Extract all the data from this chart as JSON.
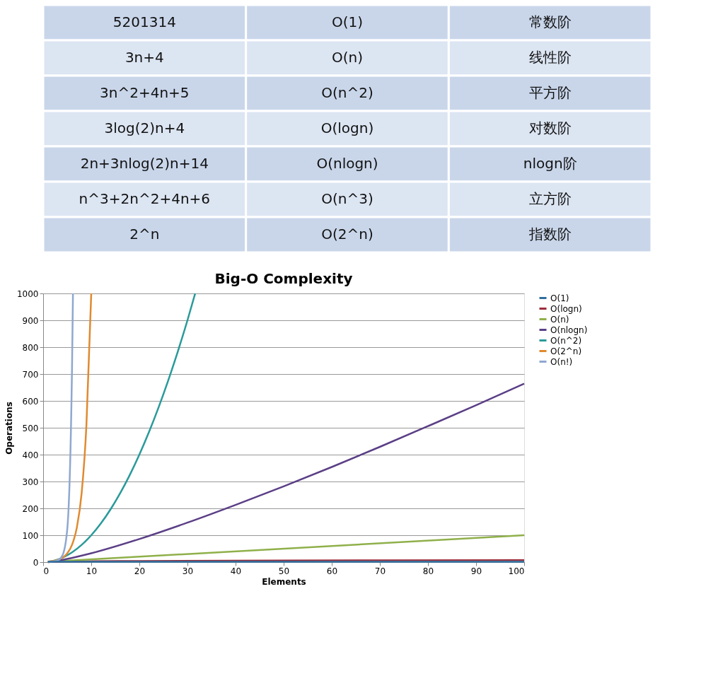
{
  "chart_data": [
    {
      "type": "other",
      "annotations": [
        "5201314",
        "O(1)",
        "常数阶",
        "3n+4",
        "O(n)",
        "线性阶",
        "3n^2+4n+5",
        "O(n^2)",
        "平方阶",
        "3log(2)n+4",
        "O(logn)",
        "对数阶",
        "2n+3nlog(2)n+14",
        "O(nlogn)",
        "nlogn阶",
        "n^3+2n^2+4n+6",
        "O(n^3)",
        "立方阶",
        "2^n",
        "O(2^n)",
        "指数阶"
      ]
    },
    {
      "type": "line",
      "title": "Big-O Complexity",
      "xlabel": "Elements",
      "ylabel": "Operations",
      "xlim": [
        0,
        100
      ],
      "xticks": [
        0,
        10,
        20,
        30,
        40,
        50,
        60,
        70,
        80,
        90,
        100
      ],
      "ylim": [
        0,
        1000
      ],
      "yticks": [
        0,
        100,
        200,
        300,
        400,
        500,
        600,
        700,
        800,
        900,
        1000
      ],
      "grid": "y",
      "legend": "right",
      "marker": "none",
      "line_style": "solid",
      "series": [
        {
          "name": "O(1)",
          "color": "#2e6e9e",
          "x": [
            1,
            100
          ],
          "values": [
            1,
            1
          ]
        },
        {
          "name": "O(logn)",
          "color": "#9b2d3b",
          "x": [
            1,
            2,
            5,
            10,
            20,
            50,
            100
          ],
          "values": [
            0,
            1,
            2,
            3,
            4,
            6,
            7
          ]
        },
        {
          "name": "O(n)",
          "color": "#8fb04a",
          "x": [
            1,
            100
          ],
          "values": [
            1,
            100
          ]
        },
        {
          "name": "O(nlogn)",
          "color": "#5b3f86",
          "x": [
            1,
            2,
            5,
            10,
            20,
            30,
            40,
            50,
            60,
            70,
            80,
            90,
            100
          ],
          "values": [
            0,
            2,
            12,
            33,
            86,
            147,
            213,
            282,
            354,
            429,
            506,
            584,
            664
          ]
        },
        {
          "name": "O(n^2)",
          "color": "#2a9a9a",
          "x": [
            1,
            2,
            4,
            6,
            8,
            10,
            12,
            14,
            16,
            18,
            20,
            22,
            24,
            26,
            28,
            30,
            31.6
          ],
          "values": [
            1,
            4,
            16,
            36,
            64,
            100,
            144,
            196,
            256,
            324,
            400,
            484,
            576,
            676,
            784,
            900,
            1000
          ]
        },
        {
          "name": "O(2^n)",
          "color": "#e08a30",
          "x": [
            1,
            2,
            3,
            4,
            5,
            6,
            7,
            8,
            9,
            10
          ],
          "values": [
            2,
            4,
            8,
            16,
            32,
            64,
            128,
            256,
            512,
            1000
          ]
        },
        {
          "name": "O(n!)",
          "color": "#8fa8d0",
          "x": [
            1,
            2,
            3,
            4,
            5,
            6,
            6.2
          ],
          "values": [
            1,
            2,
            6,
            24,
            120,
            720,
            1000
          ]
        }
      ]
    }
  ]
}
